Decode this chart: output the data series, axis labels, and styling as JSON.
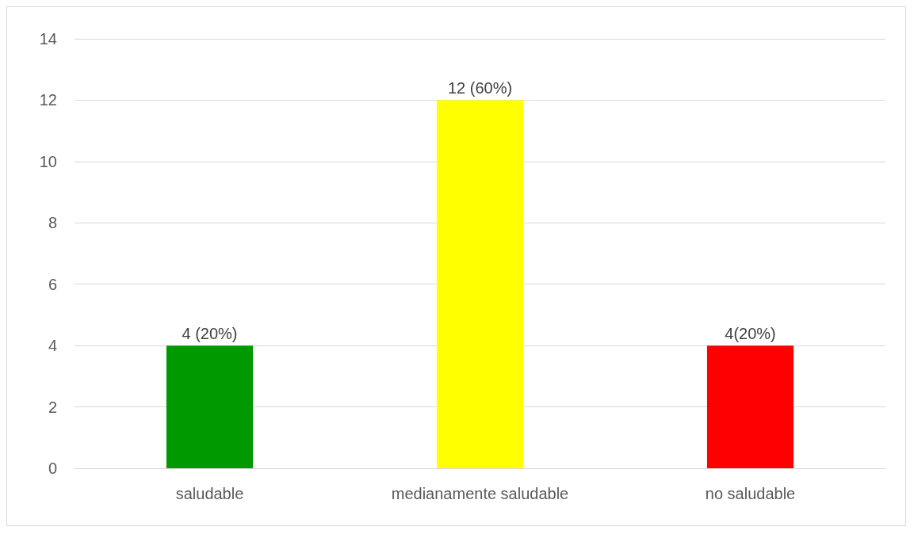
{
  "chart_data": {
    "type": "bar",
    "categories": [
      "saludable",
      "medianamente saludable",
      "no saludable"
    ],
    "values": [
      4,
      12,
      4
    ],
    "colors": [
      "#009900",
      "#ffff00",
      "#ff0000"
    ],
    "value_labels": [
      "4 (20%)",
      "12 (60%)",
      "4(20%)"
    ],
    "ylim": [
      0,
      14
    ],
    "yticks": [
      0,
      2,
      4,
      6,
      8,
      10,
      12,
      14
    ],
    "grid": "y"
  }
}
